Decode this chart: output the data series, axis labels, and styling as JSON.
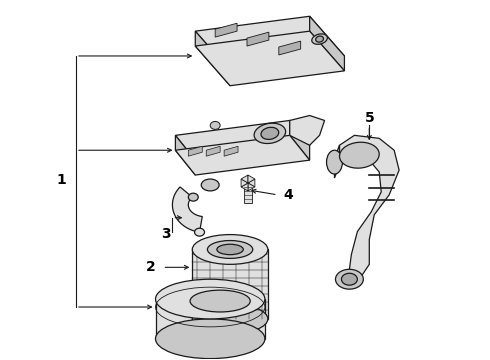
{
  "background_color": "#ffffff",
  "line_color": "#1a1a1a",
  "fill_light": "#f0f0f0",
  "fill_mid": "#e0e0e0",
  "fill_dark": "#c8c8c8",
  "fig_width": 4.9,
  "fig_height": 3.6,
  "dpi": 100,
  "label_fontsize": 10,
  "lw": 0.9
}
